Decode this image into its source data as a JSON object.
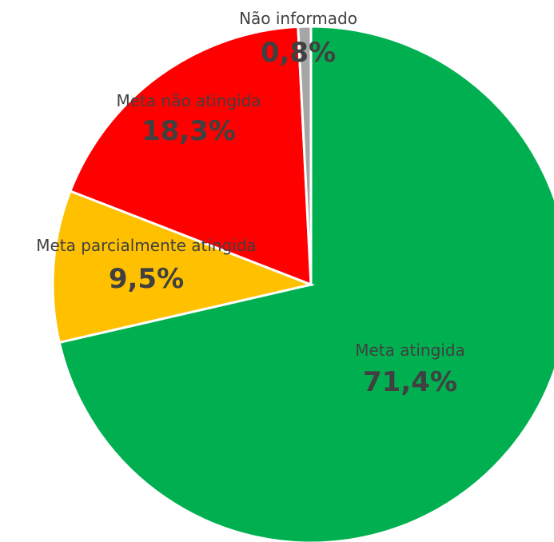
{
  "chart_data": {
    "type": "pie",
    "categories": [
      "Meta atingida",
      "Meta parcialmente atingida",
      "Meta não atingida",
      "Não informado"
    ],
    "values": [
      71.4,
      9.5,
      18.3,
      0.8
    ],
    "value_labels": [
      "71,4%",
      "9,5%",
      "18,3%",
      "0,8%"
    ],
    "colors": [
      "#00B050",
      "#FFC000",
      "#FF0000",
      "#A6A6A6"
    ],
    "label_color": "#404040",
    "start_angle_deg": 0,
    "direction": "clockwise",
    "legend": "none"
  }
}
